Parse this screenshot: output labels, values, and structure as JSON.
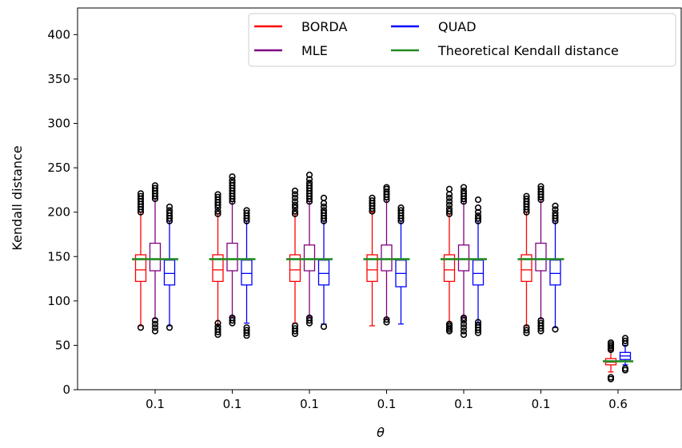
{
  "chart_data": {
    "type": "box",
    "title": "",
    "xlabel": "θ",
    "ylabel": "Kendall distance",
    "ylim": [
      0,
      430
    ],
    "yticks": [
      0,
      50,
      100,
      150,
      200,
      250,
      300,
      350,
      400
    ],
    "categories": [
      "0.1",
      "0.1",
      "0.1",
      "0.1",
      "0.1",
      "0.1",
      "0.6"
    ],
    "legend_position": "top-right",
    "series": [
      {
        "name": "BORDA",
        "color": "#ff0000",
        "boxes": [
          {
            "whislo": 72,
            "q1": 122,
            "med": 135,
            "q3": 152,
            "whishi": 200,
            "fliers": [
              70,
              200,
              203,
              206,
              209,
              212,
              215,
              218,
              221
            ]
          },
          {
            "whislo": 73,
            "q1": 122,
            "med": 135,
            "q3": 152,
            "whishi": 198,
            "fliers": [
              62,
              65,
              68,
              71,
              75,
              198,
              201,
              205,
              208,
              211,
              214,
              217,
              220
            ]
          },
          {
            "whislo": 75,
            "q1": 122,
            "med": 135,
            "q3": 152,
            "whishi": 198,
            "fliers": [
              63,
              66,
              69,
              72,
              198,
              201,
              205,
              208,
              212,
              216,
              220,
              224
            ]
          },
          {
            "whislo": 72,
            "q1": 122,
            "med": 135,
            "q3": 152,
            "whishi": 200,
            "fliers": [
              201,
              204,
              207,
              210,
              213,
              216
            ]
          },
          {
            "whislo": 75,
            "q1": 122,
            "med": 135,
            "q3": 152,
            "whishi": 198,
            "fliers": [
              66,
              68,
              70,
              72,
              74,
              198,
              201,
              204,
              208,
              212,
              216,
              220,
              226
            ]
          },
          {
            "whislo": 72,
            "q1": 122,
            "med": 135,
            "q3": 152,
            "whishi": 200,
            "fliers": [
              64,
              67,
              70,
              200,
              203,
              206,
              209,
              212,
              215,
              218
            ]
          },
          {
            "whislo": 20,
            "q1": 28,
            "med": 31,
            "q3": 35,
            "whishi": 44,
            "fliers": [
              12,
              14,
              45,
              47,
              49,
              51,
              53
            ]
          }
        ]
      },
      {
        "name": "MLE",
        "color": "#800080",
        "boxes": [
          {
            "whislo": 80,
            "q1": 134,
            "med": 147,
            "q3": 165,
            "whishi": 215,
            "fliers": [
              66,
              70,
              74,
              78,
              215,
              218,
              221,
              224,
              227,
              230
            ]
          },
          {
            "whislo": 82,
            "q1": 134,
            "med": 147,
            "q3": 165,
            "whishi": 212,
            "fliers": [
              75,
              78,
              81,
              212,
              215,
              218,
              221,
              224,
              227,
              230,
              233,
              236,
              240
            ]
          },
          {
            "whislo": 82,
            "q1": 134,
            "med": 147,
            "q3": 163,
            "whishi": 212,
            "fliers": [
              75,
              78,
              81,
              212,
              215,
              218,
              221,
              224,
              227,
              230,
              233,
              237,
              242
            ]
          },
          {
            "whislo": 80,
            "q1": 134,
            "med": 147,
            "q3": 163,
            "whishi": 214,
            "fliers": [
              76,
              79,
              214,
              217,
              220,
              223,
              226,
              228
            ]
          },
          {
            "whislo": 82,
            "q1": 134,
            "med": 147,
            "q3": 163,
            "whishi": 212,
            "fliers": [
              62,
              66,
              70,
              74,
              78,
              81,
              212,
              215,
              218,
              221,
              224,
              228
            ]
          },
          {
            "whislo": 80,
            "q1": 134,
            "med": 147,
            "q3": 165,
            "whishi": 214,
            "fliers": [
              66,
              69,
              72,
              75,
              78,
              214,
              217,
              220,
              223,
              226,
              229
            ]
          }
        ]
      },
      {
        "name": "QUAD",
        "color": "#0000ff",
        "boxes": [
          {
            "whislo": 72,
            "q1": 118,
            "med": 131,
            "q3": 146,
            "whishi": 190,
            "fliers": [
              70,
              190,
              193,
              196,
              199,
              202,
              206
            ]
          },
          {
            "whislo": 75,
            "q1": 118,
            "med": 131,
            "q3": 146,
            "whishi": 190,
            "fliers": [
              61,
              64,
              67,
              70,
              190,
              193,
              196,
              199,
              202
            ]
          },
          {
            "whislo": 74,
            "q1": 118,
            "med": 131,
            "q3": 146,
            "whishi": 190,
            "fliers": [
              71,
              190,
              193,
              196,
              199,
              202,
              206,
              210,
              216
            ]
          },
          {
            "whislo": 74,
            "q1": 116,
            "med": 131,
            "q3": 146,
            "whishi": 190,
            "fliers": [
              190,
              193,
              196,
              199,
              202,
              205
            ]
          },
          {
            "whislo": 75,
            "q1": 118,
            "med": 131,
            "q3": 146,
            "whishi": 190,
            "fliers": [
              64,
              67,
              70,
              73,
              76,
              190,
              193,
              196,
              200,
              205,
              214
            ]
          },
          {
            "whislo": 70,
            "q1": 118,
            "med": 131,
            "q3": 146,
            "whishi": 190,
            "fliers": [
              68,
              190,
              193,
              196,
              199,
              203,
              207
            ]
          },
          {
            "whislo": 28,
            "q1": 34,
            "med": 38,
            "q3": 42,
            "whishi": 50,
            "fliers": [
              22,
              24,
              52,
              55,
              58
            ]
          }
        ]
      },
      {
        "name": "Theoretical Kendall distance",
        "color": "#228b22",
        "values": [
          147,
          147,
          147,
          147,
          147,
          147,
          32
        ]
      }
    ]
  }
}
